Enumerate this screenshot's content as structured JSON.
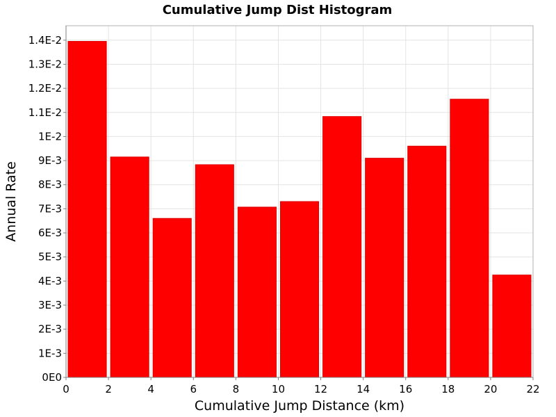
{
  "chart_data": {
    "type": "bar",
    "title": "Cumulative Jump Dist Histogram",
    "xlabel": "Cumulative Jump Distance (km)",
    "ylabel": "Annual Rate",
    "xlim": [
      0,
      22
    ],
    "ylim": [
      0,
      0.0146
    ],
    "grid": true,
    "bin_width": 2,
    "bars": [
      {
        "x_start": 0,
        "x_end": 2,
        "value": 0.01395
      },
      {
        "x_start": 2,
        "x_end": 4,
        "value": 0.00915
      },
      {
        "x_start": 4,
        "x_end": 6,
        "value": 0.0066
      },
      {
        "x_start": 6,
        "x_end": 8,
        "value": 0.00883
      },
      {
        "x_start": 8,
        "x_end": 10,
        "value": 0.00707
      },
      {
        "x_start": 10,
        "x_end": 12,
        "value": 0.0073
      },
      {
        "x_start": 12,
        "x_end": 14,
        "value": 0.01083
      },
      {
        "x_start": 14,
        "x_end": 16,
        "value": 0.0091
      },
      {
        "x_start": 16,
        "x_end": 18,
        "value": 0.0096
      },
      {
        "x_start": 18,
        "x_end": 20,
        "value": 0.01155
      },
      {
        "x_start": 20,
        "x_end": 22,
        "value": 0.00425
      }
    ],
    "x_ticks": [
      {
        "value": 0,
        "label": "0"
      },
      {
        "value": 2,
        "label": "2"
      },
      {
        "value": 4,
        "label": "4"
      },
      {
        "value": 6,
        "label": "6"
      },
      {
        "value": 8,
        "label": "8"
      },
      {
        "value": 10,
        "label": "10"
      },
      {
        "value": 12,
        "label": "12"
      },
      {
        "value": 14,
        "label": "14"
      },
      {
        "value": 16,
        "label": "16"
      },
      {
        "value": 18,
        "label": "18"
      },
      {
        "value": 20,
        "label": "20"
      },
      {
        "value": 22,
        "label": "22"
      }
    ],
    "y_ticks": [
      {
        "value": 0,
        "label": "0E0"
      },
      {
        "value": 0.001,
        "label": "1E-3"
      },
      {
        "value": 0.002,
        "label": "2E-3"
      },
      {
        "value": 0.003,
        "label": "3E-3"
      },
      {
        "value": 0.004,
        "label": "4E-3"
      },
      {
        "value": 0.005,
        "label": "5E-3"
      },
      {
        "value": 0.006,
        "label": "6E-3"
      },
      {
        "value": 0.007,
        "label": "7E-3"
      },
      {
        "value": 0.008,
        "label": "8E-3"
      },
      {
        "value": 0.009,
        "label": "9E-3"
      },
      {
        "value": 0.01,
        "label": "1E-2"
      },
      {
        "value": 0.011,
        "label": "1.1E-2"
      },
      {
        "value": 0.012,
        "label": "1.2E-2"
      },
      {
        "value": 0.013,
        "label": "1.3E-2"
      },
      {
        "value": 0.014,
        "label": "1.4E-2"
      }
    ],
    "colors": {
      "bar": "#ff0000",
      "grid": "#e3e3e3",
      "axis": "#808080",
      "plot_border": "#b0b0b0"
    }
  }
}
